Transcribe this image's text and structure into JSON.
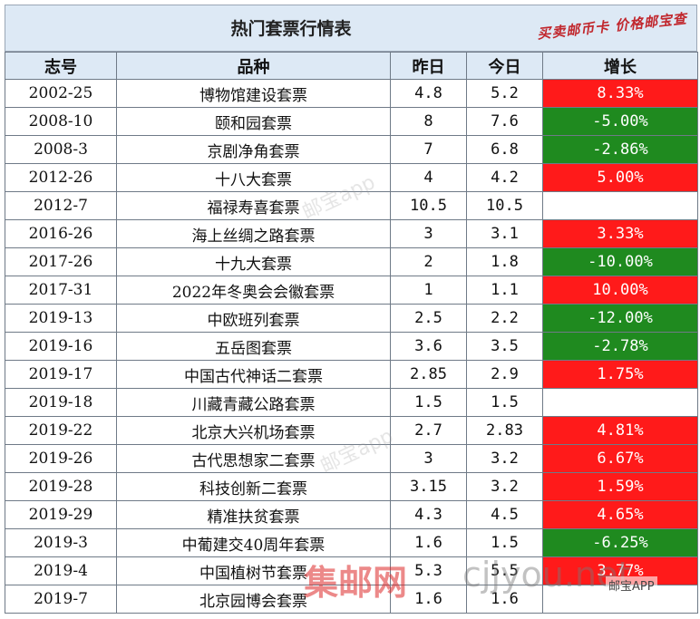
{
  "title": "热门套票行情表",
  "stamp": "买卖邮币卡 价格邮宝查",
  "headers": {
    "code": "志号",
    "name": "品种",
    "yesterday": "昨日",
    "today": "今日",
    "growth": "增长"
  },
  "rows": [
    {
      "code": "2002-25",
      "name": "博物馆建设套票",
      "yesterday": "4.8",
      "today": "5.2",
      "growth": "8.33%",
      "trend": "up"
    },
    {
      "code": "2008-10",
      "name": "颐和园套票",
      "yesterday": "8",
      "today": "7.6",
      "growth": "-5.00%",
      "trend": "down"
    },
    {
      "code": "2008-3",
      "name": "京剧净角套票",
      "yesterday": "7",
      "today": "6.8",
      "growth": "-2.86%",
      "trend": "down"
    },
    {
      "code": "2012-26",
      "name": "十八大套票",
      "yesterday": "4",
      "today": "4.2",
      "growth": "5.00%",
      "trend": "up"
    },
    {
      "code": "2012-7",
      "name": "福禄寿喜套票",
      "yesterday": "10.5",
      "today": "10.5",
      "growth": "",
      "trend": "flat"
    },
    {
      "code": "2016-26",
      "name": "海上丝绸之路套票",
      "yesterday": "3",
      "today": "3.1",
      "growth": "3.33%",
      "trend": "up"
    },
    {
      "code": "2017-26",
      "name": "十九大套票",
      "yesterday": "2",
      "today": "1.8",
      "growth": "-10.00%",
      "trend": "down"
    },
    {
      "code": "2017-31",
      "name": "2022年冬奥会会徽套票",
      "yesterday": "1",
      "today": "1.1",
      "growth": "10.00%",
      "trend": "up"
    },
    {
      "code": "2019-13",
      "name": "中欧班列套票",
      "yesterday": "2.5",
      "today": "2.2",
      "growth": "-12.00%",
      "trend": "down"
    },
    {
      "code": "2019-16",
      "name": "五岳图套票",
      "yesterday": "3.6",
      "today": "3.5",
      "growth": "-2.78%",
      "trend": "down"
    },
    {
      "code": "2019-17",
      "name": "中国古代神话二套票",
      "yesterday": "2.85",
      "today": "2.9",
      "growth": "1.75%",
      "trend": "up"
    },
    {
      "code": "2019-18",
      "name": "川藏青藏公路套票",
      "yesterday": "1.5",
      "today": "1.5",
      "growth": "",
      "trend": "flat"
    },
    {
      "code": "2019-22",
      "name": "北京大兴机场套票",
      "yesterday": "2.7",
      "today": "2.83",
      "growth": "4.81%",
      "trend": "up"
    },
    {
      "code": "2019-26",
      "name": "古代思想家二套票",
      "yesterday": "3",
      "today": "3.2",
      "growth": "6.67%",
      "trend": "up"
    },
    {
      "code": "2019-28",
      "name": "科技创新二套票",
      "yesterday": "3.15",
      "today": "3.2",
      "growth": "1.59%",
      "trend": "up"
    },
    {
      "code": "2019-29",
      "name": "精准扶贫套票",
      "yesterday": "4.3",
      "today": "4.5",
      "growth": "4.65%",
      "trend": "up"
    },
    {
      "code": "2019-3",
      "name": "中葡建交40周年套票",
      "yesterday": "1.6",
      "today": "1.5",
      "growth": "-6.25%",
      "trend": "down"
    },
    {
      "code": "2019-4",
      "name": "中国植树节套票",
      "yesterday": "5.3",
      "today": "5.5",
      "growth": "3.77%",
      "trend": "up"
    },
    {
      "code": "2019-7",
      "name": "北京园博会套票",
      "yesterday": "1.6",
      "today": "1.6",
      "growth": "",
      "trend": "flat"
    }
  ],
  "watermarks": {
    "app_diag": "邮宝app",
    "site": "集邮网",
    "url": "cjjyou.net",
    "app_badge": "邮宝APP"
  },
  "colors": {
    "header_bg": "#dde9f5",
    "up": "#ff1a1a",
    "down": "#1f8a1f",
    "stamp": "#c1272d"
  }
}
